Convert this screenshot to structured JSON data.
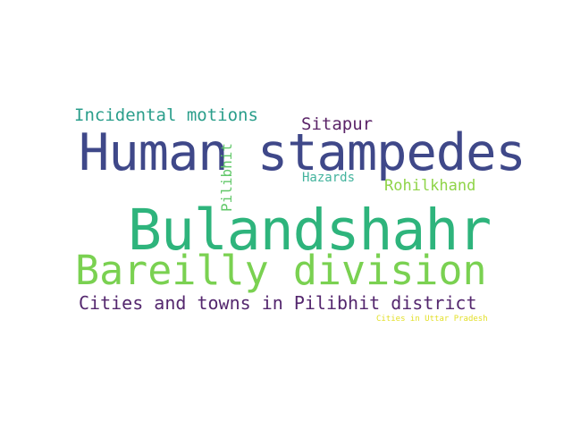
{
  "words": {
    "human_stampedes": "Human stampedes",
    "bulandshahr": "Bulandshahr",
    "bareilly_division": "Bareilly division",
    "cities_towns_pilibhit": "Cities and towns in Pilibhit district",
    "incidental_motions": "Incidental motions",
    "sitapur": "Sitapur",
    "hazards": "Hazards",
    "rohilkhand": "Rohilkhand",
    "pilibhit": "Pilibhit",
    "cities_uttar_pradesh": "Cities in Uttar Pradesh"
  },
  "colors": {
    "dark_indigo": "#3f4889",
    "teal_green": "#2eb47c",
    "light_green": "#7ad151",
    "purple": "#54276e",
    "teal": "#2a9e8b",
    "plum": "#5b2468",
    "aqua": "#42b39d",
    "lime": "#8fd448",
    "green": "#62c86a",
    "yellow": "#e2df26"
  }
}
